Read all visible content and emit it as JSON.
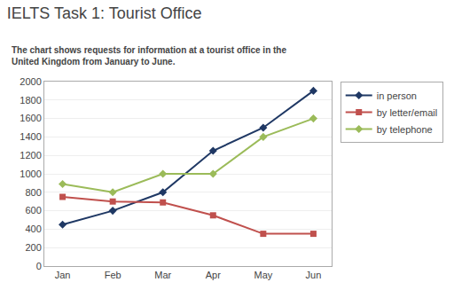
{
  "chart_data": {
    "type": "line",
    "title": "IELTS Task 1: Tourist Office",
    "subtitle": "The chart shows requests for information at a tourist office in the United Kingdom from January to June.",
    "categories": [
      "Jan",
      "Feb",
      "Mar",
      "Apr",
      "May",
      "Jun"
    ],
    "series": [
      {
        "name": "in person",
        "color": "#1f3864",
        "marker": "diamond",
        "values": [
          450,
          600,
          800,
          1250,
          1500,
          1900
        ]
      },
      {
        "name": "by letter/email",
        "color": "#c0504d",
        "marker": "square",
        "values": [
          750,
          700,
          690,
          550,
          350,
          350
        ]
      },
      {
        "name": "by telephone",
        "color": "#9bbb59",
        "marker": "diamond",
        "values": [
          890,
          800,
          1000,
          1000,
          1400,
          1600
        ]
      }
    ],
    "ylim": [
      0,
      2000
    ],
    "yticks": [
      0,
      200,
      400,
      600,
      800,
      1000,
      1200,
      1400,
      1600,
      1800,
      2000
    ],
    "grid": true,
    "legend": "right"
  }
}
